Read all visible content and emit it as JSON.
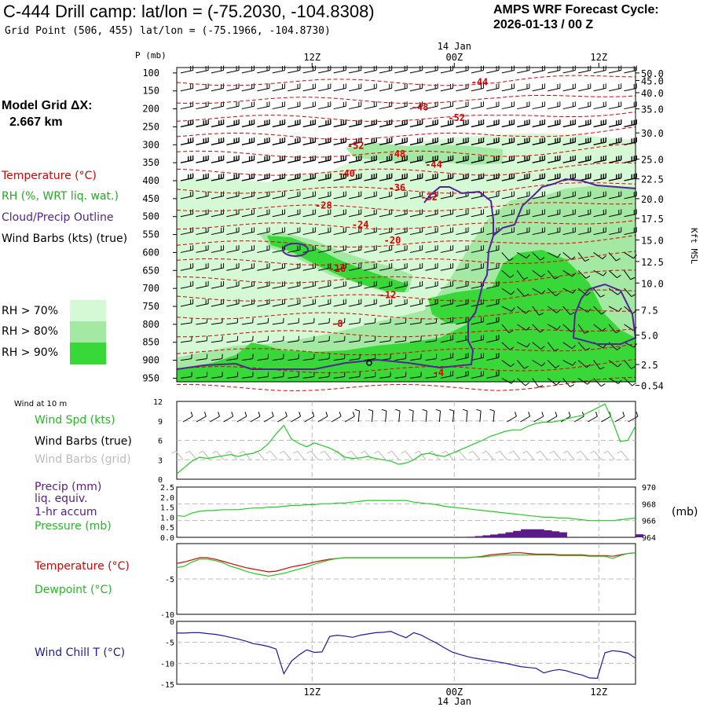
{
  "header": {
    "title": "C-444 Drill camp:  lat/lon = (-75.2030, -104.8308)",
    "grid_point": "Grid Point (506, 455) lat/lon = (-75.1966, -104.8730)",
    "forecast_title": "AMPS WRF Forecast Cycle:",
    "forecast_cycle": "2026-01-13 / 00  Z"
  },
  "sidebar": {
    "model_grid_title": "Model Grid ΔX:",
    "model_grid_value": "2.667 km",
    "legend_temperature": "Temperature (°C)",
    "legend_rh": "RH (%, WRT liq. wat.)",
    "legend_cloud": "Cloud/Precip Outline",
    "legend_wind": "Wind Barbs (kts) (true)",
    "rh_levels": [
      {
        "label": "RH > 70%",
        "color": "#d5f9d5"
      },
      {
        "label": "RH > 80%",
        "color": "#a3e8a3"
      },
      {
        "label": "RH > 90%",
        "color": "#38d838"
      }
    ]
  },
  "colors": {
    "temperature": "#dd0000",
    "cloud": "#552299",
    "green": "#22cc22",
    "wind_grid": "#bbbbbb",
    "windchill": "#1a1aa8",
    "precip": "#5a1a8a"
  },
  "chart_data": [
    {
      "type": "heatmap",
      "name": "cross-section",
      "ylabel_left": "P (mb)",
      "ylabel_right": "Kft MSL",
      "top_time_labels": [
        "12Z",
        "00Z",
        "12Z"
      ],
      "date_label": "14 Jan",
      "pressure_levels": [
        100,
        150,
        200,
        250,
        300,
        350,
        400,
        450,
        500,
        550,
        600,
        650,
        700,
        750,
        800,
        850,
        900,
        950
      ],
      "pressure_labels": [
        "100",
        "150",
        "200",
        "250",
        "300",
        "350",
        "400",
        "450",
        "500",
        "550",
        "600",
        "650",
        "700",
        "750",
        "800",
        "850",
        "900",
        "950"
      ],
      "height_labels": [
        "50.0",
        "45.0",
        "40.0",
        "35.0",
        "30.0",
        "25.0",
        "22.5",
        "20.0",
        "17.5",
        "15.0",
        "12.5",
        "10.0",
        "7.5",
        "5.0",
        "2.5",
        "0.54"
      ],
      "height_pressures": [
        100,
        121,
        155,
        200,
        267,
        340,
        395,
        450,
        505,
        565,
        625,
        685,
        760,
        830,
        912,
        970
      ],
      "temperature_labels": [
        {
          "text": "-44",
          "t": 0.66,
          "p": 125
        },
        {
          "text": "-48",
          "t": 0.53,
          "p": 196
        },
        {
          "text": "-52",
          "t": 0.61,
          "p": 225
        },
        {
          "text": "-52",
          "t": 0.39,
          "p": 303
        },
        {
          "text": "-48",
          "t": 0.48,
          "p": 326
        },
        {
          "text": "-44",
          "t": 0.56,
          "p": 355
        },
        {
          "text": "-40",
          "t": 0.37,
          "p": 380
        },
        {
          "text": "-36",
          "t": 0.48,
          "p": 420
        },
        {
          "text": "-32",
          "t": 0.55,
          "p": 446
        },
        {
          "text": "-28",
          "t": 0.32,
          "p": 469
        },
        {
          "text": "-24",
          "t": 0.4,
          "p": 523
        },
        {
          "text": "-20",
          "t": 0.47,
          "p": 566
        },
        {
          "text": "-16",
          "t": 0.35,
          "p": 645
        },
        {
          "text": "-12",
          "t": 0.46,
          "p": 718
        },
        {
          "text": "-8",
          "t": 0.35,
          "p": 798
        },
        {
          "text": "-4",
          "t": 0.57,
          "p": 935
        }
      ]
    },
    {
      "type": "line",
      "name": "wind-10m",
      "panel_title": "Wind at 10 m",
      "ylim": [
        0,
        12
      ],
      "yticks": [
        "0",
        "3",
        "6",
        "9",
        "12"
      ],
      "x": [
        0,
        1,
        2,
        3,
        4,
        5,
        6,
        7,
        8,
        9,
        10,
        11,
        12,
        13,
        14,
        15,
        16,
        17,
        18,
        19,
        20,
        21,
        22,
        23,
        24,
        25,
        26,
        27,
        28,
        29,
        30,
        31,
        32,
        33,
        34,
        35,
        36,
        37,
        38,
        39,
        40,
        41,
        42,
        43,
        44,
        45,
        46,
        47,
        48,
        49,
        50,
        51,
        52,
        53,
        54,
        55,
        56,
        57,
        58,
        59,
        60
      ],
      "series": [
        {
          "name": "Wind Spd (kts)",
          "values": [
            0.8,
            1.8,
            2.8,
            3.4,
            3.2,
            3.4,
            3.6,
            3.8,
            3.5,
            3.8,
            4.0,
            4.5,
            5.5,
            7.0,
            8.3,
            6.2,
            5.5,
            5.0,
            5.6,
            5.2,
            4.8,
            4.2,
            3.4,
            3.2,
            3.3,
            3.5,
            3.2,
            3.0,
            2.8,
            2.3,
            2.5,
            3.0,
            3.8,
            4.0,
            3.7,
            3.5,
            4.0,
            4.5,
            5.0,
            5.5,
            6.0,
            6.6,
            7.0,
            7.4,
            7.6,
            7.6,
            8.2,
            8.6,
            8.8,
            8.8,
            9.0,
            9.3,
            9.6,
            9.8,
            10.4,
            11.0,
            11.6,
            9.0,
            5.8,
            6.0,
            8.2
          ]
        }
      ],
      "legend": [
        "Wind Spd (kts)",
        "Wind Barbs (true)",
        "Wind Barbs (grid)"
      ]
    },
    {
      "type": "line",
      "name": "precip-pressure",
      "ylim_left": [
        0,
        2.5
      ],
      "yticks_left": [
        "0.0",
        "0.5",
        "1.0",
        "1.5",
        "2.0",
        "2.5"
      ],
      "ylim_right": [
        964,
        970
      ],
      "yticks_right": [
        "964",
        "966",
        "968",
        "970"
      ],
      "right_unit": "(mb)",
      "x": [
        0,
        1,
        2,
        3,
        4,
        5,
        6,
        7,
        8,
        9,
        10,
        11,
        12,
        13,
        14,
        15,
        16,
        17,
        18,
        19,
        20,
        21,
        22,
        23,
        24,
        25,
        26,
        27,
        28,
        29,
        30,
        31,
        32,
        33,
        34,
        35,
        36,
        37,
        38,
        39,
        40,
        41,
        42,
        43,
        44,
        45,
        46,
        47,
        48,
        49,
        50,
        51,
        52,
        53,
        54,
        55,
        56,
        57,
        58,
        59,
        60
      ],
      "series": [
        {
          "name": "Pressure (mb)",
          "axis": "right",
          "values": [
            966.6,
            966.5,
            966.9,
            967.1,
            967.2,
            967.2,
            967.3,
            967.3,
            967.3,
            967.4,
            967.5,
            967.5,
            967.6,
            967.6,
            967.7,
            967.8,
            967.8,
            967.9,
            967.9,
            968.0,
            968.0,
            968.1,
            968.1,
            968.2,
            968.3,
            968.4,
            968.4,
            968.4,
            968.4,
            968.4,
            968.4,
            968.2,
            968.1,
            968.0,
            967.9,
            967.7,
            967.6,
            967.5,
            967.4,
            967.3,
            967.2,
            967.1,
            967.0,
            966.9,
            966.8,
            966.7,
            966.6,
            966.5,
            966.4,
            966.4,
            966.3,
            966.3,
            966.2,
            966.1,
            966.0,
            966.0,
            966.0,
            966.0,
            966.1,
            966.2,
            966.3
          ]
        },
        {
          "name": "Precip (mm) liq. equiv. 1-hr accum",
          "axis": "left",
          "values": [
            0,
            0,
            0,
            0,
            0,
            0,
            0,
            0,
            0,
            0,
            0,
            0,
            0,
            0,
            0,
            0,
            0,
            0,
            0,
            0,
            0,
            0,
            0,
            0,
            0,
            0,
            0,
            0,
            0,
            0,
            0,
            0,
            0,
            0,
            0,
            0,
            0,
            0,
            0.03,
            0.06,
            0.1,
            0.14,
            0.18,
            0.25,
            0.32,
            0.4,
            0.4,
            0.4,
            0.35,
            0.3,
            0.25,
            0,
            0,
            0,
            0,
            0,
            0,
            0,
            0,
            0,
            0.15
          ]
        }
      ],
      "legend": [
        "Precip (mm)",
        "liq. equiv.",
        "1-hr accum",
        "Pressure (mb)"
      ]
    },
    {
      "type": "line",
      "name": "temperature-dewpoint",
      "ylim": [
        -10,
        0
      ],
      "yticks": [
        "-5",
        "-10"
      ],
      "x": [
        0,
        1,
        2,
        3,
        4,
        5,
        6,
        7,
        8,
        9,
        10,
        11,
        12,
        13,
        14,
        15,
        16,
        17,
        18,
        19,
        20,
        21,
        22,
        23,
        24,
        25,
        26,
        27,
        28,
        29,
        30,
        31,
        32,
        33,
        34,
        35,
        36,
        37,
        38,
        39,
        40,
        41,
        42,
        43,
        44,
        45,
        46,
        47,
        48,
        49,
        50,
        51,
        52,
        53,
        54,
        55,
        56,
        57,
        58,
        59,
        60
      ],
      "series": [
        {
          "name": "Temperature (°C)",
          "values": [
            -2.8,
            -2.6,
            -2.3,
            -2.0,
            -2.0,
            -2.2,
            -2.5,
            -2.8,
            -3.1,
            -3.4,
            -3.6,
            -3.8,
            -4.0,
            -3.9,
            -3.6,
            -3.3,
            -3.1,
            -2.9,
            -2.6,
            -2.4,
            -2.2,
            -2.1,
            -2.0,
            -2.0,
            -2.0,
            -2.0,
            -2.0,
            -2.0,
            -2.0,
            -2.0,
            -2.0,
            -2.0,
            -2.0,
            -2.0,
            -2.0,
            -2.0,
            -2.0,
            -2.0,
            -2.0,
            -1.9,
            -1.8,
            -1.6,
            -1.5,
            -1.4,
            -1.3,
            -1.3,
            -1.4,
            -1.5,
            -1.5,
            -1.5,
            -1.6,
            -1.6,
            -1.6,
            -1.6,
            -1.7,
            -1.7,
            -1.7,
            -1.8,
            -1.6,
            -1.4,
            -1.3
          ]
        },
        {
          "name": "Dewpoint (°C)",
          "values": [
            -3.4,
            -3.2,
            -2.6,
            -2.2,
            -2.2,
            -2.4,
            -2.7,
            -3.2,
            -3.5,
            -3.9,
            -4.2,
            -4.4,
            -4.6,
            -4.4,
            -4.2,
            -3.9,
            -3.6,
            -3.3,
            -2.9,
            -2.6,
            -2.3,
            -2.1,
            -2.0,
            -2.0,
            -2.0,
            -2.0,
            -2.0,
            -2.0,
            -2.0,
            -2.0,
            -2.0,
            -2.0,
            -2.0,
            -2.0,
            -2.0,
            -2.0,
            -2.0,
            -2.0,
            -2.0,
            -1.9,
            -1.9,
            -1.8,
            -1.7,
            -1.6,
            -1.6,
            -1.6,
            -1.6,
            -1.6,
            -1.6,
            -1.6,
            -1.7,
            -1.7,
            -1.7,
            -1.7,
            -1.8,
            -1.8,
            -1.8,
            -2.1,
            -1.7,
            -1.4,
            -1.3
          ]
        }
      ],
      "legend": [
        "Temperature (°C)",
        "Dewpoint (°C)"
      ]
    },
    {
      "type": "line",
      "name": "wind-chill",
      "ylim": [
        -15,
        0
      ],
      "yticks": [
        "0",
        "-5",
        "-10",
        "-15"
      ],
      "x_labels": [
        "12Z",
        "00Z",
        "12Z"
      ],
      "date_label": "14 Jan",
      "x": [
        0,
        1,
        2,
        3,
        4,
        5,
        6,
        7,
        8,
        9,
        10,
        11,
        12,
        13,
        14,
        15,
        16,
        17,
        18,
        19,
        20,
        21,
        22,
        23,
        24,
        25,
        26,
        27,
        28,
        29,
        30,
        31,
        32,
        33,
        34,
        35,
        36,
        37,
        38,
        39,
        40,
        41,
        42,
        43,
        44,
        45,
        46,
        47,
        48,
        49,
        50,
        51,
        52,
        53,
        54,
        55,
        56,
        57,
        58,
        59,
        60
      ],
      "series": [
        {
          "name": "Wind Chill T (°C)",
          "values": [
            -2.8,
            -2.8,
            -2.7,
            -2.7,
            -2.9,
            -3.1,
            -3.4,
            -3.8,
            -4.2,
            -4.7,
            -5.3,
            -5.6,
            -6.0,
            -6.6,
            -12.5,
            -9.5,
            -8.0,
            -6.8,
            -7.4,
            -7.3,
            -3.6,
            -3.3,
            -3.5,
            -3.8,
            -3.3,
            -3.0,
            -2.7,
            -2.6,
            -2.4,
            -3.2,
            -3.9,
            -2.7,
            -3.3,
            -4.3,
            -5.2,
            -6.3,
            -7.3,
            -7.9,
            -8.4,
            -8.8,
            -9.1,
            -9.4,
            -9.7,
            -10.0,
            -10.4,
            -10.8,
            -11.0,
            -11.2,
            -12.3,
            -11.8,
            -11.5,
            -11.8,
            -12.4,
            -12.8,
            -13.5,
            -13.6,
            -7.5,
            -7.0,
            -7.2,
            -7.6,
            -8.8
          ]
        }
      ],
      "legend": [
        "Wind Chill T (°C)"
      ]
    }
  ],
  "panels": {
    "p2_title": "Wind at 10 m",
    "p2_spd": "Wind Spd (kts)",
    "p2_barbs_true": "Wind Barbs (true)",
    "p2_barbs_grid": "Wind Barbs (grid)",
    "p3_precip": "Precip (mm)",
    "p3_liq": "liq. equiv.",
    "p3_accum": "1-hr accum",
    "p3_pressure": "Pressure (mb)",
    "p3_unit": "(mb)",
    "p4_temp": "Temperature (°C)",
    "p4_dew": "Dewpoint (°C)",
    "p5_wc": "Wind Chill T (°C)"
  }
}
